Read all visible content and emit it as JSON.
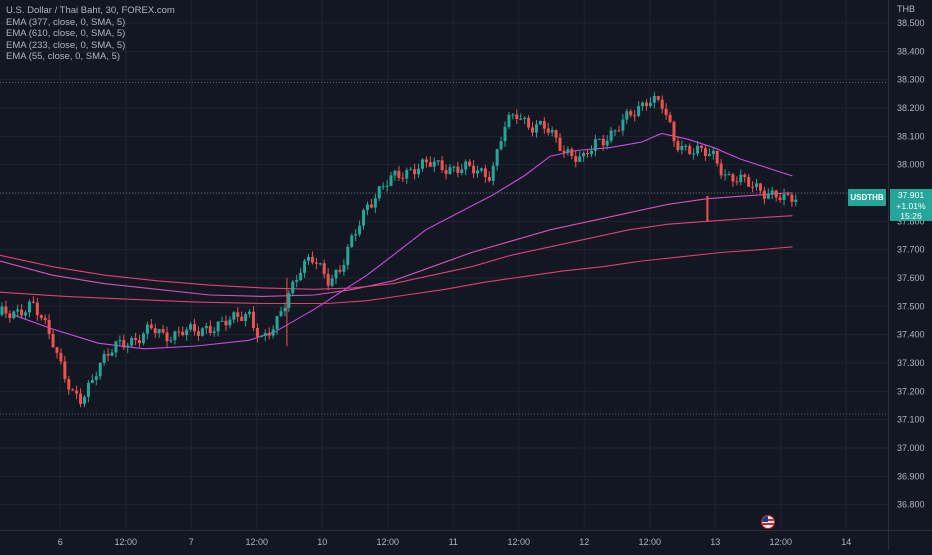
{
  "symbol": {
    "title": "U.S. Dollar / Thai Baht, 30, FOREX.com",
    "ticker": "USDTHB",
    "currency": "THB"
  },
  "indicators": [
    {
      "label": "EMA (377, close, 0, SMA, 5)",
      "color": "#e0407a"
    },
    {
      "label": "EMA (610, close, 0, SMA, 5)",
      "color": "#e0406a"
    },
    {
      "label": "EMA (233, close, 0, SMA, 5)",
      "color": "#d452b8"
    },
    {
      "label": "EMA (55, close, 0, SMA, 5)",
      "color": "#c94de0"
    }
  ],
  "last": {
    "price": "37.901",
    "change": "+1.01%",
    "countdown": "15:26"
  },
  "chart_data": {
    "type": "line",
    "background": "#131722",
    "grid": true,
    "price_axis": "right",
    "y_range": [
      36.76,
      38.56
    ],
    "y_ticks": [
      "38.500",
      "38.400",
      "38.300",
      "38.200",
      "38.100",
      "38.000",
      "37.900",
      "37.800",
      "37.700",
      "37.600",
      "37.500",
      "37.400",
      "37.300",
      "37.200",
      "37.100",
      "37.000",
      "36.900",
      "36.800"
    ],
    "x_ticks": [
      "6",
      "12:00",
      "7",
      "12:00",
      "10",
      "12:00",
      "11",
      "12:00",
      "12",
      "12:00",
      "13",
      "12:00",
      "14"
    ],
    "x_range_days": [
      0,
      14
    ],
    "horizontal_marks": [
      38.29,
      37.9,
      37.12
    ],
    "up_color": "#26a69a",
    "down_color": "#ef5350",
    "close_series": [
      [
        0.0,
        37.47
      ],
      [
        0.5,
        37.5
      ],
      [
        0.8,
        37.39
      ],
      [
        1.0,
        37.25
      ],
      [
        1.1,
        37.18
      ],
      [
        1.25,
        37.16
      ],
      [
        1.5,
        37.3
      ],
      [
        1.75,
        37.35
      ],
      [
        2.0,
        37.38
      ],
      [
        2.3,
        37.42
      ],
      [
        2.5,
        37.39
      ],
      [
        2.8,
        37.42
      ],
      [
        3.0,
        37.4
      ],
      [
        3.3,
        37.44
      ],
      [
        3.6,
        37.45
      ],
      [
        3.8,
        37.48
      ],
      [
        4.0,
        37.38
      ],
      [
        4.2,
        37.42
      ],
      [
        4.4,
        37.55
      ],
      [
        4.6,
        37.64
      ],
      [
        4.8,
        37.66
      ],
      [
        5.0,
        37.6
      ],
      [
        5.2,
        37.63
      ],
      [
        5.4,
        37.74
      ],
      [
        5.6,
        37.86
      ],
      [
        5.8,
        37.91
      ],
      [
        6.0,
        37.95
      ],
      [
        6.3,
        37.99
      ],
      [
        6.6,
        38.0
      ],
      [
        6.9,
        37.99
      ],
      [
        7.2,
        37.98
      ],
      [
        7.5,
        37.97
      ],
      [
        7.7,
        38.13
      ],
      [
        7.9,
        38.18
      ],
      [
        8.1,
        38.14
      ],
      [
        8.3,
        38.13
      ],
      [
        8.6,
        38.06
      ],
      [
        8.9,
        38.01
      ],
      [
        9.1,
        38.08
      ],
      [
        9.4,
        38.12
      ],
      [
        9.7,
        38.19
      ],
      [
        9.9,
        38.24
      ],
      [
        10.1,
        38.21
      ],
      [
        10.3,
        38.08
      ],
      [
        10.5,
        38.06
      ],
      [
        10.7,
        38.04
      ],
      [
        10.9,
        38.03
      ],
      [
        11.1,
        37.96
      ],
      [
        11.3,
        37.94
      ],
      [
        11.6,
        37.92
      ],
      [
        11.8,
        37.89
      ],
      [
        12.0,
        37.87
      ],
      [
        12.2,
        37.9
      ]
    ],
    "series": [
      {
        "name": "EMA (55, close, 0, SMA, 5)",
        "color": "#c94de0",
        "points": [
          [
            0.2,
            37.47
          ],
          [
            0.8,
            37.42
          ],
          [
            1.5,
            37.37
          ],
          [
            2.2,
            37.35
          ],
          [
            3.0,
            37.36
          ],
          [
            3.8,
            37.38
          ],
          [
            4.2,
            37.41
          ],
          [
            4.8,
            37.49
          ],
          [
            5.2,
            37.55
          ],
          [
            5.6,
            37.61
          ],
          [
            6.0,
            37.68
          ],
          [
            6.5,
            37.77
          ],
          [
            7.0,
            37.83
          ],
          [
            7.5,
            37.89
          ],
          [
            8.0,
            37.96
          ],
          [
            8.4,
            38.03
          ],
          [
            8.8,
            38.05
          ],
          [
            9.3,
            38.06
          ],
          [
            9.8,
            38.08
          ],
          [
            10.1,
            38.11
          ],
          [
            10.5,
            38.09
          ],
          [
            10.9,
            38.06
          ],
          [
            11.3,
            38.02
          ],
          [
            11.7,
            37.99
          ],
          [
            12.1,
            37.96
          ]
        ]
      },
      {
        "name": "EMA (233, close, 0, SMA, 5)",
        "color": "#d452b8",
        "points": [
          [
            0.0,
            37.66
          ],
          [
            0.8,
            37.61
          ],
          [
            1.6,
            37.58
          ],
          [
            2.4,
            37.56
          ],
          [
            3.2,
            37.54
          ],
          [
            4.0,
            37.535
          ],
          [
            4.8,
            37.54
          ],
          [
            5.4,
            37.56
          ],
          [
            6.0,
            37.59
          ],
          [
            6.6,
            37.64
          ],
          [
            7.2,
            37.69
          ],
          [
            7.8,
            37.73
          ],
          [
            8.4,
            37.77
          ],
          [
            9.0,
            37.8
          ],
          [
            9.6,
            37.83
          ],
          [
            10.2,
            37.86
          ],
          [
            10.8,
            37.88
          ],
          [
            11.4,
            37.89
          ],
          [
            12.0,
            37.9
          ],
          [
            12.1,
            37.9
          ]
        ]
      },
      {
        "name": "EMA (377, close, 0, SMA, 5)",
        "color": "#e0407a",
        "points": [
          [
            0.0,
            37.68
          ],
          [
            0.8,
            37.64
          ],
          [
            1.6,
            37.61
          ],
          [
            2.4,
            37.59
          ],
          [
            3.2,
            37.575
          ],
          [
            4.0,
            37.565
          ],
          [
            4.8,
            37.56
          ],
          [
            5.4,
            37.565
          ],
          [
            6.0,
            37.58
          ],
          [
            6.6,
            37.61
          ],
          [
            7.2,
            37.64
          ],
          [
            7.8,
            37.68
          ],
          [
            8.4,
            37.71
          ],
          [
            9.0,
            37.74
          ],
          [
            9.6,
            37.77
          ],
          [
            10.2,
            37.79
          ],
          [
            10.8,
            37.8
          ],
          [
            11.4,
            37.81
          ],
          [
            12.1,
            37.82
          ]
        ]
      },
      {
        "name": "EMA (610, close, 0, SMA, 5)",
        "color": "#e0406a",
        "points": [
          [
            0.0,
            37.55
          ],
          [
            1.0,
            37.535
          ],
          [
            2.0,
            37.525
          ],
          [
            3.0,
            37.515
          ],
          [
            4.0,
            37.51
          ],
          [
            5.0,
            37.51
          ],
          [
            5.6,
            37.52
          ],
          [
            6.2,
            37.54
          ],
          [
            6.8,
            37.56
          ],
          [
            7.4,
            37.585
          ],
          [
            8.0,
            37.605
          ],
          [
            8.6,
            37.625
          ],
          [
            9.2,
            37.64
          ],
          [
            9.8,
            37.66
          ],
          [
            10.4,
            37.675
          ],
          [
            11.0,
            37.69
          ],
          [
            11.6,
            37.7
          ],
          [
            12.1,
            37.71
          ]
        ]
      }
    ]
  }
}
